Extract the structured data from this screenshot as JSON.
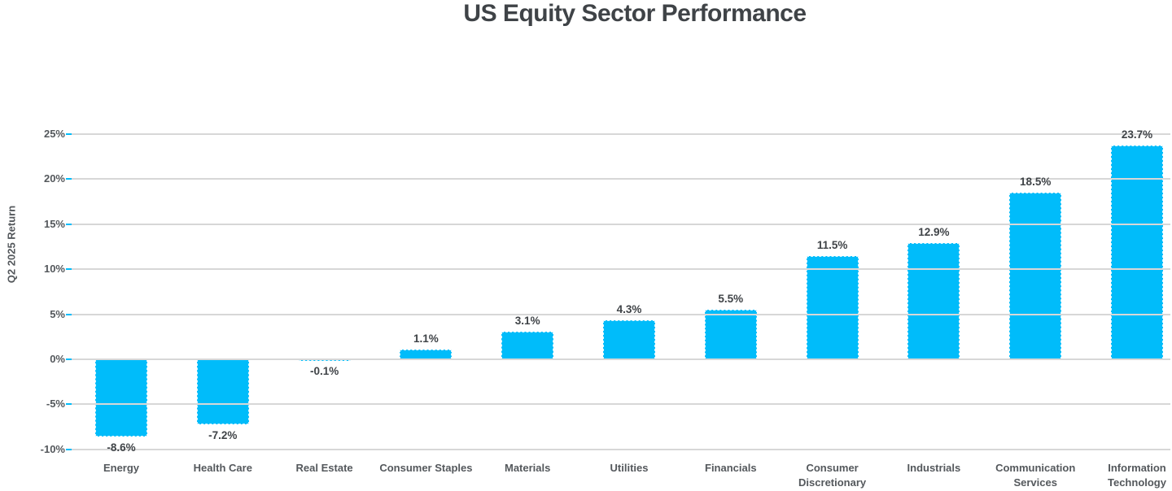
{
  "chart_data": {
    "type": "bar",
    "title": "US Equity Sector Performance",
    "xlabel": "",
    "ylabel": "Q2 2025 Return",
    "categories": [
      "Energy",
      "Health Care",
      "Real Estate",
      "Consumer Staples",
      "Materials",
      "Utilities",
      "Financials",
      "Consumer Discretionary",
      "Industrials",
      "Communication Services",
      "Information Technology"
    ],
    "values": [
      -8.6,
      -7.2,
      -0.1,
      1.1,
      3.1,
      4.3,
      5.5,
      11.5,
      12.9,
      18.5,
      23.7
    ],
    "value_labels": [
      "-8.6%",
      "-7.2%",
      "-0.1%",
      "1.1%",
      "3.1%",
      "4.3%",
      "5.5%",
      "11.5%",
      "12.9%",
      "18.5%",
      "23.7%"
    ],
    "ylim": [
      -10,
      25
    ],
    "yticks": [
      25,
      20,
      15,
      10,
      5,
      0,
      -5,
      -10
    ],
    "ytick_labels": [
      "25%",
      "20%",
      "15%",
      "10%",
      "5%",
      "0%",
      "-5%",
      "-10%"
    ],
    "grid": true,
    "legend": "none",
    "bar_color": "#00bcfa",
    "colors": {
      "title_text": "#3f4347",
      "axis_text": "#54585c",
      "value_label_text": "#3f4347",
      "gridline": "#d7d7d7",
      "tick_accent": "#00bcfa",
      "background": "#ffffff"
    }
  }
}
